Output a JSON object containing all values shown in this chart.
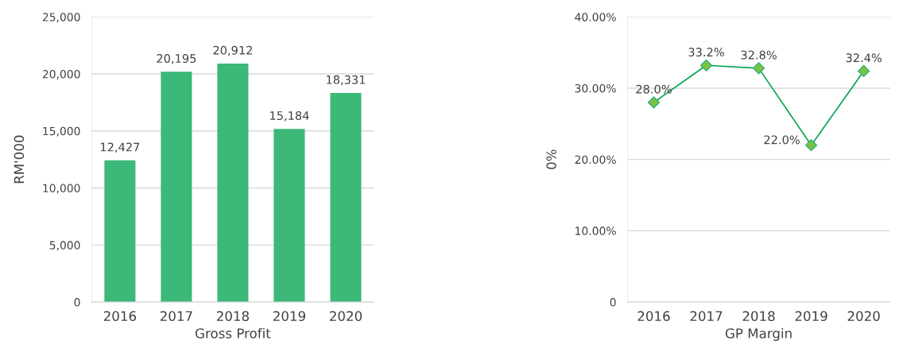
{
  "chart_data": [
    {
      "type": "bar",
      "xlabel": "Gross Profit",
      "ylabel": "RM'000",
      "categories": [
        "2016",
        "2017",
        "2018",
        "2019",
        "2020"
      ],
      "values": [
        12427,
        20195,
        20912,
        15184,
        18331
      ],
      "value_labels": [
        "12,427",
        "20,195",
        "20,912",
        "15,184",
        "18,331"
      ],
      "color": "#3cb878",
      "ylim": [
        0,
        25000
      ],
      "yticks": [
        0,
        {
          "value": 5000,
          "label": "5,000"
        },
        {
          "value": 10000,
          "label": "10,000"
        },
        {
          "value": 15000,
          "label": "15,000"
        },
        {
          "value": 20000,
          "label": "20,000"
        },
        {
          "value": 25000,
          "label": "25,000"
        }
      ],
      "grid": "y"
    },
    {
      "type": "line",
      "xlabel": "GP Margin",
      "ylabel": "0%",
      "categories": [
        "2016",
        "2017",
        "2018",
        "2019",
        "2020"
      ],
      "values": [
        28.0,
        33.2,
        32.8,
        22.0,
        32.4
      ],
      "value_labels": [
        "28.0%",
        "33.2%",
        "32.8%",
        "22.0%",
        "32.4%"
      ],
      "color": "#00a651",
      "marker": "diamond",
      "ylim": [
        0,
        40
      ],
      "yticks": [
        0,
        {
          "value": 10,
          "label": "10.00%"
        },
        {
          "value": 20,
          "label": "20.00%"
        },
        {
          "value": 30,
          "label": "30.00%"
        },
        {
          "value": 40,
          "label": "40.00%"
        }
      ],
      "grid": "y"
    }
  ]
}
